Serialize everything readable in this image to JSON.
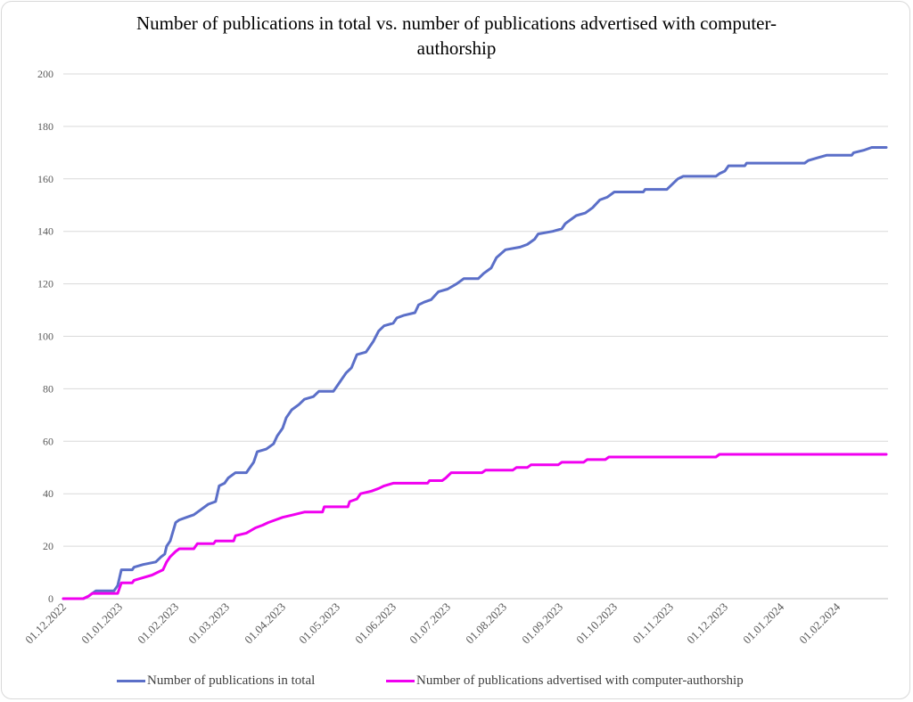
{
  "chart_data": {
    "type": "line",
    "title": "Number of publications in total vs. number of publications advertised with computer-authorship",
    "title_lines": [
      "Number of publications in total vs. number of publications advertised with computer-",
      "authorship"
    ],
    "xlabel": "",
    "ylabel": "",
    "ylim": [
      0,
      200
    ],
    "yticks": [
      "0",
      "20",
      "40",
      "60",
      "80",
      "100",
      "120",
      "140",
      "160",
      "180",
      "200"
    ],
    "xlim": [
      "2022-12-01",
      "2024-02-29"
    ],
    "x_tick_labels": [
      "01.12.2022",
      "01.01.2023",
      "01.02.2023",
      "01.03.2023",
      "01.04.2023",
      "01.05.2023",
      "01.06.2023",
      "01.07.2023",
      "01.08.2023",
      "01.09.2023",
      "01.10.2023",
      "01.11.2023",
      "01.12.2023",
      "01.01.2024",
      "01.02.2024"
    ],
    "x_tick_dates": [
      "2022-12-01",
      "2023-01-01",
      "2023-02-01",
      "2023-03-01",
      "2023-04-01",
      "2023-05-01",
      "2023-06-01",
      "2023-07-01",
      "2023-08-01",
      "2023-09-01",
      "2023-10-01",
      "2023-11-01",
      "2023-12-01",
      "2024-01-01",
      "2024-02-01"
    ],
    "grid": true,
    "legend_position": "bottom",
    "series": [
      {
        "name": "Number of publications in total",
        "color": "#5b6fc8",
        "points": [
          [
            "2022-12-01",
            0
          ],
          [
            "2022-12-12",
            0
          ],
          [
            "2022-12-15",
            1
          ],
          [
            "2022-12-17",
            2
          ],
          [
            "2022-12-19",
            3
          ],
          [
            "2022-12-29",
            3
          ],
          [
            "2022-12-31",
            5
          ],
          [
            "2023-01-02",
            11
          ],
          [
            "2023-01-08",
            11
          ],
          [
            "2023-01-09",
            12
          ],
          [
            "2023-01-14",
            13
          ],
          [
            "2023-01-21",
            14
          ],
          [
            "2023-01-24",
            16
          ],
          [
            "2023-01-26",
            17
          ],
          [
            "2023-01-27",
            20
          ],
          [
            "2023-01-29",
            22
          ],
          [
            "2023-02-01",
            29
          ],
          [
            "2023-02-03",
            30
          ],
          [
            "2023-02-07",
            31
          ],
          [
            "2023-02-11",
            32
          ],
          [
            "2023-02-15",
            34
          ],
          [
            "2023-02-19",
            36
          ],
          [
            "2023-02-23",
            37
          ],
          [
            "2023-02-25",
            43
          ],
          [
            "2023-02-28",
            44
          ],
          [
            "2023-03-02",
            46
          ],
          [
            "2023-03-06",
            48
          ],
          [
            "2023-03-12",
            48
          ],
          [
            "2023-03-14",
            50
          ],
          [
            "2023-03-16",
            52
          ],
          [
            "2023-03-18",
            56
          ],
          [
            "2023-03-23",
            57
          ],
          [
            "2023-03-27",
            59
          ],
          [
            "2023-03-29",
            62
          ],
          [
            "2023-04-01",
            65
          ],
          [
            "2023-04-03",
            69
          ],
          [
            "2023-04-06",
            72
          ],
          [
            "2023-04-10",
            74
          ],
          [
            "2023-04-13",
            76
          ],
          [
            "2023-04-18",
            77
          ],
          [
            "2023-04-21",
            79
          ],
          [
            "2023-04-29",
            79
          ],
          [
            "2023-05-02",
            82
          ],
          [
            "2023-05-06",
            86
          ],
          [
            "2023-05-09",
            88
          ],
          [
            "2023-05-12",
            93
          ],
          [
            "2023-05-17",
            94
          ],
          [
            "2023-05-21",
            98
          ],
          [
            "2023-05-24",
            102
          ],
          [
            "2023-05-27",
            104
          ],
          [
            "2023-06-01",
            105
          ],
          [
            "2023-06-03",
            107
          ],
          [
            "2023-06-07",
            108
          ],
          [
            "2023-06-13",
            109
          ],
          [
            "2023-06-15",
            112
          ],
          [
            "2023-06-18",
            113
          ],
          [
            "2023-06-22",
            114
          ],
          [
            "2023-06-26",
            117
          ],
          [
            "2023-07-01",
            118
          ],
          [
            "2023-07-06",
            120
          ],
          [
            "2023-07-10",
            122
          ],
          [
            "2023-07-18",
            122
          ],
          [
            "2023-07-21",
            124
          ],
          [
            "2023-07-25",
            126
          ],
          [
            "2023-07-28",
            130
          ],
          [
            "2023-08-02",
            133
          ],
          [
            "2023-08-10",
            134
          ],
          [
            "2023-08-14",
            135
          ],
          [
            "2023-08-18",
            137
          ],
          [
            "2023-08-20",
            139
          ],
          [
            "2023-08-28",
            140
          ],
          [
            "2023-09-02",
            141
          ],
          [
            "2023-09-04",
            143
          ],
          [
            "2023-09-06",
            144
          ],
          [
            "2023-09-10",
            146
          ],
          [
            "2023-09-15",
            147
          ],
          [
            "2023-09-19",
            149
          ],
          [
            "2023-09-23",
            152
          ],
          [
            "2023-09-27",
            153
          ],
          [
            "2023-10-01",
            155
          ],
          [
            "2023-10-17",
            155
          ],
          [
            "2023-10-18",
            156
          ],
          [
            "2023-10-30",
            156
          ],
          [
            "2023-11-02",
            158
          ],
          [
            "2023-11-05",
            160
          ],
          [
            "2023-11-08",
            161
          ],
          [
            "2023-11-26",
            161
          ],
          [
            "2023-11-28",
            162
          ],
          [
            "2023-12-01",
            163
          ],
          [
            "2023-12-03",
            165
          ],
          [
            "2023-12-12",
            165
          ],
          [
            "2023-12-13",
            166
          ],
          [
            "2024-01-08",
            166
          ],
          [
            "2024-01-14",
            166
          ],
          [
            "2024-01-16",
            167
          ],
          [
            "2024-01-21",
            168
          ],
          [
            "2024-01-26",
            169
          ],
          [
            "2024-02-09",
            169
          ],
          [
            "2024-02-10",
            170
          ],
          [
            "2024-02-16",
            171
          ],
          [
            "2024-02-20",
            172
          ],
          [
            "2024-02-28",
            172
          ]
        ]
      },
      {
        "name": "Number of publications advertised with computer-authorship",
        "color": "#f000f0",
        "points": [
          [
            "2022-12-01",
            0
          ],
          [
            "2022-12-12",
            0
          ],
          [
            "2022-12-15",
            1
          ],
          [
            "2022-12-17",
            2
          ],
          [
            "2022-12-31",
            2
          ],
          [
            "2023-01-02",
            6
          ],
          [
            "2023-01-08",
            6
          ],
          [
            "2023-01-09",
            7
          ],
          [
            "2023-01-14",
            8
          ],
          [
            "2023-01-19",
            9
          ],
          [
            "2023-01-22",
            10
          ],
          [
            "2023-01-25",
            11
          ],
          [
            "2023-01-27",
            14
          ],
          [
            "2023-01-29",
            16
          ],
          [
            "2023-02-01",
            18
          ],
          [
            "2023-02-03",
            19
          ],
          [
            "2023-02-11",
            19
          ],
          [
            "2023-02-13",
            21
          ],
          [
            "2023-02-22",
            21
          ],
          [
            "2023-02-23",
            22
          ],
          [
            "2023-03-05",
            22
          ],
          [
            "2023-03-06",
            24
          ],
          [
            "2023-03-12",
            25
          ],
          [
            "2023-03-17",
            27
          ],
          [
            "2023-03-21",
            28
          ],
          [
            "2023-03-24",
            29
          ],
          [
            "2023-03-28",
            30
          ],
          [
            "2023-04-01",
            31
          ],
          [
            "2023-04-07",
            32
          ],
          [
            "2023-04-13",
            33
          ],
          [
            "2023-04-23",
            33
          ],
          [
            "2023-04-24",
            35
          ],
          [
            "2023-05-07",
            35
          ],
          [
            "2023-05-08",
            37
          ],
          [
            "2023-05-12",
            38
          ],
          [
            "2023-05-14",
            40
          ],
          [
            "2023-05-20",
            41
          ],
          [
            "2023-05-24",
            42
          ],
          [
            "2023-05-27",
            43
          ],
          [
            "2023-06-01",
            44
          ],
          [
            "2023-06-20",
            44
          ],
          [
            "2023-06-21",
            45
          ],
          [
            "2023-06-28",
            45
          ],
          [
            "2023-06-30",
            46
          ],
          [
            "2023-07-03",
            48
          ],
          [
            "2023-07-20",
            48
          ],
          [
            "2023-07-22",
            49
          ],
          [
            "2023-08-06",
            49
          ],
          [
            "2023-08-08",
            50
          ],
          [
            "2023-08-14",
            50
          ],
          [
            "2023-08-16",
            51
          ],
          [
            "2023-08-31",
            51
          ],
          [
            "2023-09-02",
            52
          ],
          [
            "2023-09-14",
            52
          ],
          [
            "2023-09-16",
            53
          ],
          [
            "2023-09-26",
            53
          ],
          [
            "2023-09-28",
            54
          ],
          [
            "2023-11-26",
            54
          ],
          [
            "2023-11-28",
            55
          ],
          [
            "2024-02-28",
            55
          ]
        ]
      }
    ]
  },
  "legend": {
    "items": [
      {
        "label": "Number of publications in total",
        "color": "#5b6fc8"
      },
      {
        "label": "Number of publications advertised with computer-authorship",
        "color": "#f000f0"
      }
    ]
  }
}
